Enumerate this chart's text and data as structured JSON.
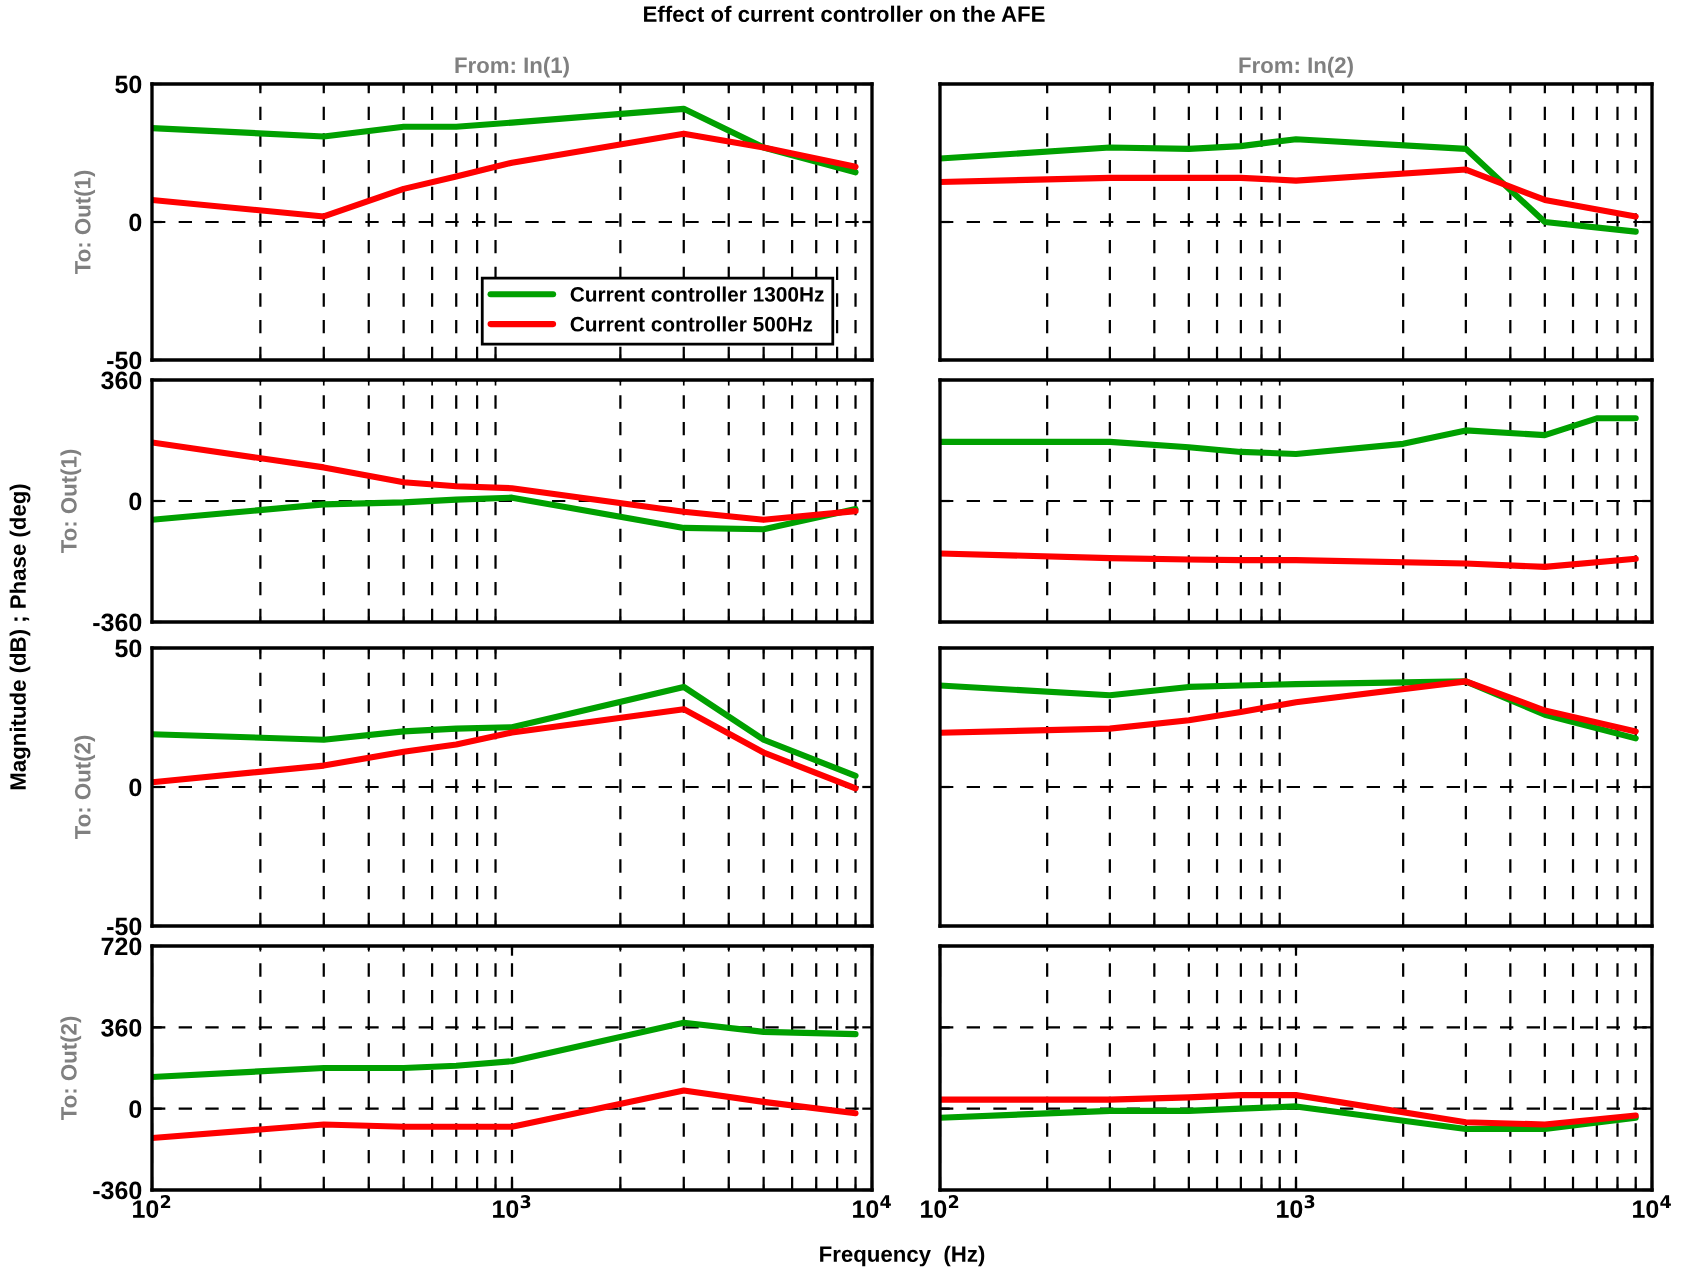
{
  "chart_data": [
    {
      "type": "line",
      "title": "Effect of current controller on the AFE",
      "subtitle": "From: In(1)",
      "ylabel": "To: Out(1)",
      "annotations": [
        "Magnitude (dB) ; Phase (deg)"
      ],
      "log": "x",
      "grid": true,
      "legend": "bottom right",
      "tick_labels": "y",
      "x": [
        100,
        300,
        500,
        700,
        1000,
        3000,
        5000,
        9000
      ],
      "xlim": [
        100,
        10000
      ],
      "ylim": [
        -50,
        50
      ],
      "yticks": [
        -50,
        0,
        50
      ],
      "series": [
        {
          "name": "Current controller 1300Hz",
          "color": "#00a000",
          "values": [
            34,
            31,
            34.5,
            34.5,
            36,
            41,
            27,
            18
          ]
        },
        {
          "name": "Current controller 500Hz",
          "color": "#ff0000",
          "values": [
            8,
            2,
            12,
            16.5,
            21.5,
            32,
            27,
            20
          ]
        }
      ]
    },
    {
      "type": "line",
      "subtitle": "From: In(2)",
      "log": "x",
      "grid": true,
      "tick_labels": false,
      "x": [
        100,
        300,
        500,
        700,
        1000,
        3000,
        5000,
        9000
      ],
      "xlim": [
        100,
        10000
      ],
      "ylim": [
        -50,
        50
      ],
      "yticks": [
        -50,
        0,
        50
      ],
      "series": [
        {
          "color": "#00a000",
          "values": [
            23,
            27,
            26.5,
            27.5,
            30,
            26.5,
            0,
            -3.5
          ]
        },
        {
          "color": "#ff0000",
          "values": [
            14.5,
            16,
            16,
            16,
            15,
            19,
            8,
            2
          ]
        }
      ]
    },
    {
      "type": "line",
      "ylabel": "To: Out(1)",
      "log": "x",
      "grid": true,
      "tick_labels": "y",
      "x": [
        100,
        300,
        500,
        700,
        1000,
        3000,
        5000,
        9000
      ],
      "xlim": [
        100,
        10000
      ],
      "ylim": [
        -360,
        360
      ],
      "yticks": [
        -360,
        0,
        360
      ],
      "series": [
        {
          "color": "#00a000",
          "values": [
            -56,
            -10,
            -4,
            4,
            10,
            -80,
            -84,
            -24
          ]
        },
        {
          "color": "#ff0000",
          "values": [
            174,
            100,
            56,
            44,
            38,
            -32,
            -56,
            -30
          ]
        }
      ]
    },
    {
      "type": "line",
      "log": "x",
      "grid": true,
      "tick_labels": false,
      "x": [
        100,
        300,
        500,
        700,
        1000,
        3000,
        5000,
        9000
      ],
      "xlim": [
        100,
        10000
      ],
      "ylim": [
        -360,
        360
      ],
      "yticks": [
        -360,
        0,
        360
      ],
      "series": [
        {
          "color": "#00a000",
          "x": [
            100,
            300,
            500,
            700,
            1000,
            2000,
            3000,
            5000,
            7000,
            9000
          ],
          "values": [
            176,
            176,
            160,
            146,
            140,
            170,
            210,
            196,
            246,
            246
          ]
        },
        {
          "color": "#ff0000",
          "values": [
            -156,
            -170,
            -174,
            -176,
            -176,
            -186,
            -196,
            -172
          ]
        }
      ]
    },
    {
      "type": "line",
      "ylabel": "To: Out(2)",
      "log": "x",
      "grid": true,
      "tick_labels": "y",
      "x": [
        100,
        300,
        500,
        700,
        1000,
        3000,
        5000,
        9000
      ],
      "xlim": [
        100,
        10000
      ],
      "ylim": [
        -50,
        50
      ],
      "yticks": [
        -50,
        0,
        50
      ],
      "series": [
        {
          "color": "#00a000",
          "values": [
            19,
            17,
            20,
            21,
            21.5,
            36,
            17,
            4
          ]
        },
        {
          "color": "#ff0000",
          "values": [
            1.7,
            7.7,
            12.7,
            15.3,
            19.6,
            28,
            12.4,
            -0.5
          ]
        }
      ]
    },
    {
      "type": "line",
      "log": "x",
      "grid": true,
      "tick_labels": false,
      "x": [
        100,
        300,
        500,
        700,
        1000,
        3000,
        5000,
        9000
      ],
      "xlim": [
        100,
        10000
      ],
      "ylim": [
        -50,
        50
      ],
      "yticks": [
        -50,
        0,
        50
      ],
      "series": [
        {
          "color": "#00a000",
          "values": [
            36.5,
            33,
            36,
            36.5,
            37,
            38,
            26,
            17.5
          ]
        },
        {
          "color": "#ff0000",
          "values": [
            19.5,
            21,
            24,
            27,
            30.5,
            38,
            27.5,
            20
          ]
        }
      ]
    },
    {
      "type": "line",
      "ylabel": "To: Out(2)",
      "xlabel": "Frequency  (Hz)",
      "log": "x",
      "grid": true,
      "x": [
        100,
        300,
        500,
        700,
        1000,
        3000,
        5000,
        9000
      ],
      "xlim": [
        100,
        10000
      ],
      "ylim": [
        -360,
        720
      ],
      "yticks": [
        -360,
        0,
        360,
        720
      ],
      "xticks": [
        {
          "value": 100,
          "label": "10$^{2}$"
        },
        {
          "value": 1000,
          "label": "10$^{3}$"
        },
        {
          "value": 10000,
          "label": "10$^{4}$"
        }
      ],
      "series": [
        {
          "color": "#00a000",
          "values": [
            140,
            180,
            180,
            190,
            210,
            380,
            340,
            330
          ]
        },
        {
          "color": "#ff0000",
          "values": [
            -130,
            -70,
            -80,
            -80,
            -80,
            80,
            30,
            -20
          ]
        }
      ]
    },
    {
      "type": "line",
      "log": "x",
      "grid": true,
      "tick_labels": "x",
      "x": [
        100,
        300,
        500,
        700,
        1000,
        3000,
        5000,
        9000
      ],
      "xlim": [
        100,
        10000
      ],
      "ylim": [
        -360,
        720
      ],
      "yticks": [
        -360,
        0,
        360,
        720
      ],
      "xticks": [
        {
          "value": 100,
          "label": "10$^{2}$"
        },
        {
          "value": 1000,
          "label": "10$^{3}$"
        },
        {
          "value": 10000,
          "label": "10$^{4}$"
        }
      ],
      "series": [
        {
          "color": "#00a000",
          "values": [
            -40,
            -10,
            -10,
            0,
            10,
            -90,
            -90,
            -40
          ]
        },
        {
          "color": "#ff0000",
          "values": [
            40,
            40,
            50,
            60,
            60,
            -60,
            -70,
            -30
          ]
        }
      ]
    }
  ]
}
